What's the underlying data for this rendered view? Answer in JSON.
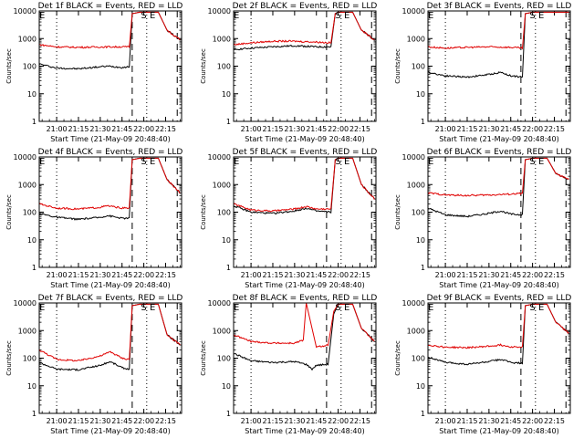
{
  "figure": {
    "colors": {
      "events": "#000000",
      "lld": "#e00000",
      "axes": "#000000"
    }
  },
  "chart_data": [
    {
      "type": "line",
      "yscale": "log",
      "ylim": [
        1,
        10000
      ],
      "title": "Det 1f BLACK = Events, RED = LLD",
      "xlabel": "Start Time (21-May-09 20:48:40)",
      "ylabel": "Counts/sec",
      "xticks": [
        "21:00",
        "21:15",
        "21:30",
        "21:45",
        "22:00",
        "22:15"
      ],
      "yticks": [
        "1",
        "10",
        "100",
        "1000",
        "10000"
      ],
      "markers": [
        "E",
        "S",
        "E"
      ],
      "series": [
        {
          "name": "Events",
          "x": [
            "20:48",
            "21:00",
            "21:15",
            "21:25",
            "21:35",
            "21:45",
            "21:50",
            "21:52",
            "21:57",
            "22:10",
            "22:16",
            "22:25"
          ],
          "y": [
            120,
            85,
            80,
            90,
            100,
            90,
            95,
            8000,
            9000,
            9000,
            2000,
            900
          ]
        },
        {
          "name": "LLD",
          "x": [
            "20:48",
            "21:00",
            "21:15",
            "21:25",
            "21:35",
            "21:45",
            "21:50",
            "21:52",
            "21:57",
            "22:10",
            "22:16",
            "22:25"
          ],
          "y": [
            600,
            500,
            480,
            490,
            500,
            500,
            500,
            8000,
            9000,
            9000,
            2000,
            900
          ]
        }
      ]
    },
    {
      "type": "line",
      "yscale": "log",
      "ylim": [
        1,
        10000
      ],
      "title": "Det 2f BLACK = Events, RED = LLD",
      "xlabel": "Start Time (21-May-09 20:48:40)",
      "ylabel": "Counts/sec",
      "xticks": [
        "21:00",
        "21:15",
        "21:30",
        "21:45",
        "22:00",
        "22:15"
      ],
      "yticks": [
        "1",
        "10",
        "100",
        "1000",
        "10000"
      ],
      "markers": [
        "E",
        "S",
        "E"
      ],
      "series": [
        {
          "name": "Events",
          "x": [
            "20:48",
            "21:00",
            "21:15",
            "21:30",
            "21:45",
            "21:55",
            "21:58",
            "22:00",
            "22:10",
            "22:16",
            "22:25"
          ],
          "y": [
            400,
            450,
            500,
            550,
            500,
            500,
            8000,
            9000,
            9000,
            2000,
            900
          ]
        },
        {
          "name": "LLD",
          "x": [
            "20:48",
            "21:00",
            "21:15",
            "21:30",
            "21:45",
            "21:55",
            "21:58",
            "22:00",
            "22:10",
            "22:16",
            "22:25"
          ],
          "y": [
            600,
            700,
            800,
            800,
            750,
            700,
            8000,
            9000,
            9000,
            2000,
            900
          ]
        }
      ]
    },
    {
      "type": "line",
      "yscale": "log",
      "ylim": [
        1,
        10000
      ],
      "title": "Det 3f BLACK = Events, RED = LLD",
      "xlabel": "Start Time (21-May-09 20:48:40)",
      "ylabel": "Counts/sec",
      "xticks": [
        "21:00",
        "21:15",
        "21:30",
        "21:45",
        "22:00",
        "22:15"
      ],
      "yticks": [
        "1",
        "10",
        "100",
        "1000",
        "10000"
      ],
      "markers": [
        "E",
        "S",
        "E"
      ],
      "series": [
        {
          "name": "Events",
          "x": [
            "20:48",
            "21:00",
            "21:15",
            "21:30",
            "21:38",
            "21:45",
            "21:53",
            "21:55",
            "22:00",
            "22:10",
            "22:16",
            "22:25"
          ],
          "y": [
            60,
            45,
            40,
            50,
            60,
            45,
            40,
            8000,
            9000,
            9000,
            9000,
            9000
          ]
        },
        {
          "name": "LLD",
          "x": [
            "20:48",
            "21:00",
            "21:15",
            "21:30",
            "21:45",
            "21:53",
            "21:55",
            "22:00",
            "22:10",
            "22:16",
            "22:25"
          ],
          "y": [
            500,
            450,
            480,
            500,
            480,
            450,
            8000,
            9000,
            9000,
            9000,
            9000
          ]
        }
      ]
    },
    {
      "type": "line",
      "yscale": "log",
      "ylim": [
        1,
        10000
      ],
      "title": "Det 4f BLACK = Events, RED = LLD",
      "xlabel": "Start Time (21-May-09 20:48:40)",
      "ylabel": "Counts/sec",
      "xticks": [
        "21:00",
        "21:15",
        "21:30",
        "21:45",
        "22:00",
        "22:15"
      ],
      "yticks": [
        "1",
        "10",
        "100",
        "1000",
        "10000"
      ],
      "markers": [
        "E",
        "S",
        "E"
      ],
      "series": [
        {
          "name": "Events",
          "x": [
            "20:48",
            "21:00",
            "21:15",
            "21:30",
            "21:35",
            "21:45",
            "21:50",
            "21:52",
            "21:57",
            "22:10",
            "22:16",
            "22:25"
          ],
          "y": [
            90,
            65,
            55,
            65,
            75,
            60,
            60,
            8000,
            9000,
            9000,
            1500,
            500
          ]
        },
        {
          "name": "LLD",
          "x": [
            "20:48",
            "21:00",
            "21:15",
            "21:30",
            "21:35",
            "21:45",
            "21:50",
            "21:52",
            "21:57",
            "22:10",
            "22:16",
            "22:25"
          ],
          "y": [
            200,
            140,
            130,
            150,
            170,
            140,
            140,
            8000,
            9000,
            9000,
            1500,
            500
          ]
        }
      ]
    },
    {
      "type": "line",
      "yscale": "log",
      "ylim": [
        1,
        10000
      ],
      "title": "Det 5f BLACK = Events, RED = LLD",
      "xlabel": "Start Time (21-May-09 20:48:40)",
      "ylabel": "Counts/sec",
      "xticks": [
        "21:00",
        "21:15",
        "21:30",
        "21:45",
        "22:00",
        "22:15"
      ],
      "yticks": [
        "1",
        "10",
        "100",
        "1000",
        "10000"
      ],
      "markers": [
        "E",
        "S",
        "E"
      ],
      "series": [
        {
          "name": "Events",
          "x": [
            "20:48",
            "21:00",
            "21:15",
            "21:30",
            "21:38",
            "21:45",
            "21:55",
            "21:58",
            "22:00",
            "22:10",
            "22:16",
            "22:25"
          ],
          "y": [
            170,
            100,
            90,
            110,
            140,
            110,
            100,
            8000,
            9000,
            9000,
            1000,
            300
          ]
        },
        {
          "name": "LLD",
          "x": [
            "20:48",
            "21:00",
            "21:15",
            "21:30",
            "21:38",
            "21:45",
            "21:55",
            "21:58",
            "22:00",
            "22:10",
            "22:16",
            "22:25"
          ],
          "y": [
            200,
            120,
            110,
            130,
            160,
            130,
            130,
            8000,
            9000,
            9000,
            1000,
            300
          ]
        }
      ]
    },
    {
      "type": "line",
      "yscale": "log",
      "ylim": [
        1,
        10000
      ],
      "title": "Det 6f BLACK = Events, RED = LLD",
      "xlabel": "Start Time (21-May-09 20:48:40)",
      "ylabel": "Counts/sec",
      "xticks": [
        "21:00",
        "21:15",
        "21:30",
        "21:45",
        "22:00",
        "22:15"
      ],
      "yticks": [
        "1",
        "10",
        "100",
        "1000",
        "10000"
      ],
      "markers": [
        "E",
        "S",
        "E"
      ],
      "series": [
        {
          "name": "Events",
          "x": [
            "20:48",
            "21:00",
            "21:15",
            "21:30",
            "21:38",
            "21:45",
            "21:53",
            "21:55",
            "22:00",
            "22:10",
            "22:16",
            "22:25"
          ],
          "y": [
            140,
            80,
            70,
            90,
            110,
            85,
            80,
            8000,
            9000,
            9000,
            2500,
            1500
          ]
        },
        {
          "name": "LLD",
          "x": [
            "20:48",
            "21:00",
            "21:15",
            "21:30",
            "21:45",
            "21:53",
            "21:55",
            "22:00",
            "22:10",
            "22:16",
            "22:25"
          ],
          "y": [
            500,
            420,
            400,
            420,
            450,
            480,
            8000,
            9000,
            9000,
            2500,
            1500
          ]
        }
      ]
    },
    {
      "type": "line",
      "yscale": "log",
      "ylim": [
        1,
        10000
      ],
      "title": "Det 7f BLACK = Events, RED = LLD",
      "xlabel": "Start Time (21-May-09 20:48:40)",
      "ylabel": "Counts/sec",
      "xticks": [
        "21:00",
        "21:15",
        "21:30",
        "21:45",
        "22:00",
        "22:15"
      ],
      "yticks": [
        "1",
        "10",
        "100",
        "1000",
        "10000"
      ],
      "markers": [
        "E",
        "S",
        "E"
      ],
      "series": [
        {
          "name": "Events",
          "x": [
            "20:48",
            "21:00",
            "21:15",
            "21:30",
            "21:37",
            "21:45",
            "21:50",
            "21:52",
            "21:57",
            "22:10",
            "22:16",
            "22:25"
          ],
          "y": [
            70,
            40,
            38,
            55,
            75,
            45,
            40,
            8000,
            9000,
            9000,
            700,
            300
          ]
        },
        {
          "name": "LLD",
          "x": [
            "20:48",
            "21:00",
            "21:15",
            "21:30",
            "21:37",
            "21:45",
            "21:50",
            "21:52",
            "21:57",
            "22:10",
            "22:16",
            "22:25"
          ],
          "y": [
            200,
            90,
            80,
            120,
            170,
            100,
            90,
            8000,
            9000,
            9000,
            700,
            300
          ]
        }
      ]
    },
    {
      "type": "line",
      "yscale": "log",
      "ylim": [
        1,
        10000
      ],
      "title": "Det 8f BLACK = Events, RED = LLD",
      "xlabel": "Start Time (21-May-09 20:48:40)",
      "ylabel": "Counts/sec",
      "xticks": [
        "21:00",
        "21:15",
        "21:30",
        "21:45",
        "22:00",
        "22:15"
      ],
      "yticks": [
        "1",
        "10",
        "100",
        "1000",
        "10000"
      ],
      "markers": [
        "E",
        "S",
        "E"
      ],
      "series": [
        {
          "name": "Events",
          "x": [
            "20:48",
            "21:00",
            "21:15",
            "21:30",
            "21:38",
            "21:42",
            "21:45",
            "21:53",
            "21:57",
            "22:00",
            "22:10",
            "22:16",
            "22:25"
          ],
          "y": [
            150,
            80,
            70,
            75,
            60,
            40,
            55,
            60,
            4000,
            9000,
            9000,
            1200,
            400
          ]
        },
        {
          "name": "LLD",
          "x": [
            "20:48",
            "21:00",
            "21:15",
            "21:30",
            "21:36",
            "21:38",
            "21:45",
            "21:53",
            "21:57",
            "22:00",
            "22:10",
            "22:16",
            "22:25"
          ],
          "y": [
            700,
            400,
            350,
            350,
            450,
            10000,
            250,
            300,
            5000,
            9000,
            9000,
            1200,
            400
          ]
        }
      ]
    },
    {
      "type": "line",
      "yscale": "log",
      "ylim": [
        1,
        10000
      ],
      "title": "Det 9f BLACK = Events, RED = LLD",
      "xlabel": "Start Time (21-May-09 20:48:40)",
      "ylabel": "Counts/sec",
      "xticks": [
        "21:00",
        "21:15",
        "21:30",
        "21:45",
        "22:00",
        "22:15"
      ],
      "yticks": [
        "1",
        "10",
        "100",
        "1000",
        "10000"
      ],
      "markers": [
        "E",
        "S",
        "E"
      ],
      "series": [
        {
          "name": "Events",
          "x": [
            "20:48",
            "21:00",
            "21:15",
            "21:30",
            "21:38",
            "21:45",
            "21:53",
            "21:55",
            "22:00",
            "22:10",
            "22:16",
            "22:25"
          ],
          "y": [
            110,
            70,
            60,
            75,
            90,
            70,
            65,
            8000,
            9000,
            9000,
            2000,
            800
          ]
        },
        {
          "name": "LLD",
          "x": [
            "20:48",
            "21:00",
            "21:15",
            "21:30",
            "21:38",
            "21:45",
            "21:53",
            "21:55",
            "22:00",
            "22:10",
            "22:16",
            "22:25"
          ],
          "y": [
            300,
            250,
            240,
            270,
            300,
            260,
            250,
            8000,
            9000,
            9000,
            2000,
            800
          ]
        }
      ]
    }
  ]
}
